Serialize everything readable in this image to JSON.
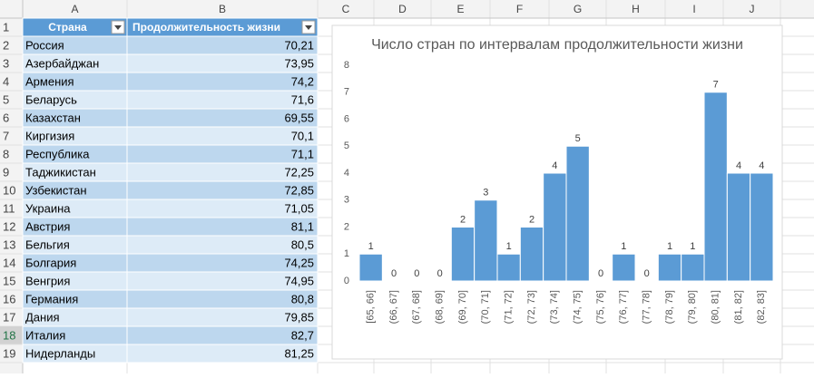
{
  "sheet": {
    "columns": [
      "A",
      "B",
      "C",
      "D",
      "E",
      "F",
      "G",
      "H",
      "I",
      "J"
    ],
    "row_numbers": [
      1,
      2,
      3,
      4,
      5,
      6,
      7,
      8,
      9,
      10,
      11,
      12,
      13,
      14,
      15,
      16,
      17,
      18,
      19
    ],
    "table": {
      "header": [
        "Страна",
        "Продолжительность жизни"
      ],
      "rows": [
        [
          "Россия",
          "70,21"
        ],
        [
          "Азербайджан",
          "73,95"
        ],
        [
          "Армения",
          "74,2"
        ],
        [
          "Беларусь",
          "71,6"
        ],
        [
          "Казахстан",
          "69,55"
        ],
        [
          "Киргизия",
          "70,1"
        ],
        [
          "Республика",
          "71,1"
        ],
        [
          "Таджикистан",
          "72,25"
        ],
        [
          "Узбекистан",
          "72,85"
        ],
        [
          "Украина",
          "71,05"
        ],
        [
          "Австрия",
          "81,1"
        ],
        [
          "Бельгия",
          "80,5"
        ],
        [
          "Болгария",
          "74,25"
        ],
        [
          "Венгрия",
          "74,95"
        ],
        [
          "Германия",
          "80,8"
        ],
        [
          "Дания",
          "79,85"
        ],
        [
          "Италия",
          "82,7"
        ],
        [
          "Нидерланды",
          "81,25"
        ]
      ]
    }
  },
  "chart_data": {
    "type": "bar",
    "title": "Число стран по интервалам продолжительности жизни",
    "categories": [
      "[65, 66]",
      "(66, 67]",
      "(67, 68]",
      "(68, 69]",
      "(69, 70]",
      "(70, 71]",
      "(71, 72]",
      "(72, 73]",
      "(73, 74]",
      "(74, 75]",
      "(75, 76]",
      "(76, 77]",
      "(77, 78]",
      "(78, 79]",
      "(79, 80]",
      "(80, 81]",
      "(81, 82]",
      "(82, 83]"
    ],
    "values": [
      1,
      0,
      0,
      0,
      2,
      3,
      1,
      2,
      4,
      5,
      0,
      1,
      0,
      1,
      1,
      7,
      4,
      4
    ],
    "color": "#5b9bd5",
    "ylim": [
      0,
      8
    ],
    "yticks": [
      0,
      1,
      2,
      3,
      4,
      5,
      6,
      7,
      8
    ],
    "data_labels": true
  }
}
